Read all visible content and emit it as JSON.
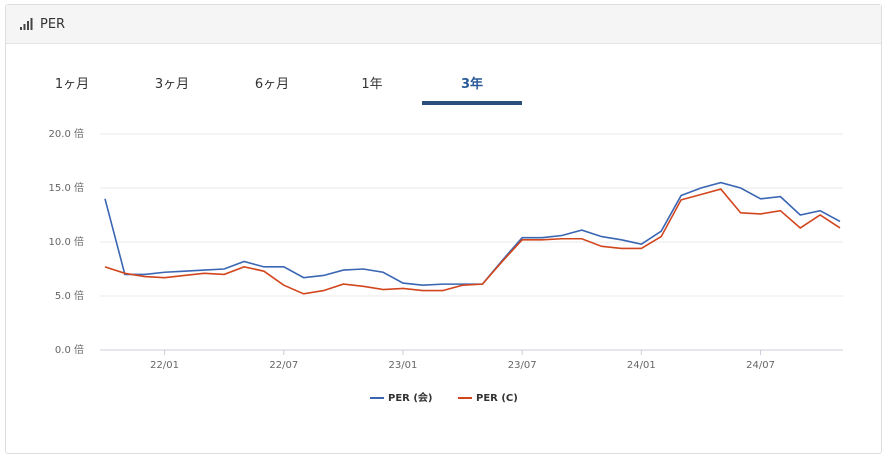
{
  "header": {
    "title": "PER"
  },
  "tabs": [
    "1ヶ月",
    "3ヶ月",
    "6ヶ月",
    "1年",
    "3年"
  ],
  "active_tab": 4,
  "chart_data": {
    "type": "line",
    "x": [
      "21/10",
      "21/11",
      "21/12",
      "22/01",
      "22/02",
      "22/03",
      "22/04",
      "22/05",
      "22/06",
      "22/07",
      "22/08",
      "22/09",
      "22/10",
      "22/11",
      "22/12",
      "23/01",
      "23/02",
      "23/03",
      "23/04",
      "23/05",
      "23/06",
      "23/07",
      "23/08",
      "23/09",
      "23/10",
      "23/11",
      "23/12",
      "24/01",
      "24/02",
      "24/03",
      "24/04",
      "24/05",
      "24/06",
      "24/07",
      "24/08",
      "24/09",
      "24/10",
      "24/11"
    ],
    "series": [
      {
        "name": "PER (会)",
        "color": "#3a66b3",
        "values": [
          14.0,
          7.0,
          7.0,
          7.2,
          7.3,
          7.4,
          7.5,
          8.2,
          7.7,
          7.7,
          6.7,
          6.9,
          7.4,
          7.5,
          7.2,
          6.2,
          6.0,
          6.1,
          6.1,
          6.1,
          8.3,
          10.4,
          10.4,
          10.6,
          11.1,
          10.5,
          10.2,
          9.8,
          11.0,
          14.3,
          15.0,
          15.5,
          15.0,
          14.0,
          14.2,
          12.5,
          12.9,
          11.9
        ]
      },
      {
        "name": "PER (C)",
        "color": "#d2461e",
        "values": [
          7.7,
          7.1,
          6.8,
          6.7,
          6.9,
          7.1,
          7.0,
          7.7,
          7.3,
          6.0,
          5.2,
          5.5,
          6.1,
          5.9,
          5.6,
          5.7,
          5.5,
          5.5,
          6.0,
          6.1,
          8.2,
          10.2,
          10.2,
          10.3,
          10.3,
          9.6,
          9.4,
          9.4,
          10.5,
          13.9,
          14.4,
          14.9,
          12.7,
          12.6,
          12.9,
          11.3,
          12.5,
          11.3
        ]
      }
    ],
    "xticks": [
      "22/01",
      "22/07",
      "23/01",
      "23/07",
      "24/01",
      "24/07"
    ],
    "ylim": [
      0,
      20
    ],
    "yticks": [
      {
        "value": 0,
        "label": "0.0 倍"
      },
      {
        "value": 5,
        "label": "5.0 倍"
      },
      {
        "value": 10,
        "label": "10.0 倍"
      },
      {
        "value": 15,
        "label": "15.0 倍"
      },
      {
        "value": 20,
        "label": "20.0 倍"
      }
    ],
    "grid": true
  }
}
